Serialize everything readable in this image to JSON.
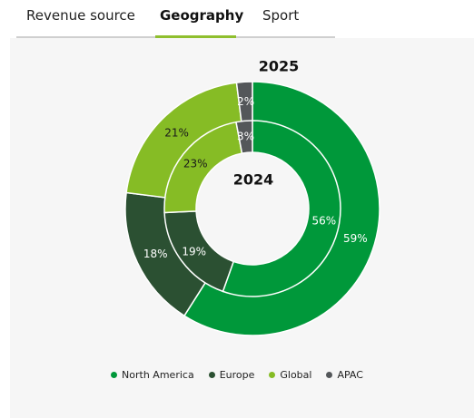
{
  "tabs": [
    {
      "label": "Revenue source",
      "active": false
    },
    {
      "label": "Geography",
      "active": true
    },
    {
      "label": "Sport",
      "active": false
    }
  ],
  "colors": {
    "North America": "#00983a",
    "Europe": "#2b5032",
    "Global": "#86bc25",
    "APAC": "#54575a"
  },
  "chart_data": {
    "type": "pie",
    "subtype": "nested-donut",
    "categories": [
      "North America",
      "Europe",
      "Global",
      "APAC"
    ],
    "series": [
      {
        "name": "2025",
        "ring": "outer",
        "values": [
          59,
          18,
          21,
          2
        ]
      },
      {
        "name": "2024",
        "ring": "inner",
        "values": [
          56,
          19,
          23,
          3
        ]
      }
    ],
    "value_suffix": "%",
    "legend": {
      "position": "bottom",
      "items": [
        "North America",
        "Europe",
        "Global",
        "APAC"
      ]
    }
  }
}
